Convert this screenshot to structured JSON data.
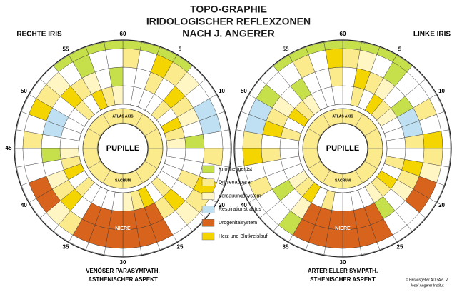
{
  "header": {
    "title_lines": [
      "TOPO-GRAPHIE",
      "IRIDOLOGISCHER REFLEXZONEN",
      "NACH J. ANGERER"
    ]
  },
  "irises": [
    {
      "label": "RECHTE IRIS",
      "numbers": [
        "60",
        "5",
        "10",
        "20",
        "25",
        "30",
        "35",
        "40",
        "45",
        "50",
        "55"
      ],
      "pupil": "PUPILLE",
      "top_label": "ATLAS AXIS",
      "bottom_label": "SACRUM",
      "kidney": "NIERE",
      "caption_lines": [
        "VENÖSER PARASYMPATH.",
        "ASTHENISCHER ASPEKT"
      ]
    },
    {
      "label": "LINKE IRIS",
      "numbers": [
        "60",
        "5",
        "10",
        "20",
        "25",
        "30",
        "35",
        "40",
        "50",
        "55"
      ],
      "pupil": "PUPILLE",
      "top_label": "ATLAS AXIS",
      "bottom_label": "SACRUM",
      "kidney": "NIERE",
      "caption_lines": [
        "ARTERIELLER SYMPATH.",
        "STHENISCHER ASPEKT"
      ]
    }
  ],
  "legend": [
    {
      "label": "Knochengerüst",
      "color": "#c5e04a"
    },
    {
      "label": "Drüsenapparat",
      "color": "#fbeb8c"
    },
    {
      "label": "Verdauungssystem",
      "color": "#fff6c4"
    },
    {
      "label": "Respirationstraktus",
      "color": "#bfe0f2"
    },
    {
      "label": "Urogenitalsystem",
      "color": "#d8631c"
    },
    {
      "label": "Herz und Blutkreislauf",
      "color": "#f4d500"
    }
  ],
  "credits": [
    "© Herausgeber ADGA e. V.",
    "Josef Angerer Institut"
  ]
}
